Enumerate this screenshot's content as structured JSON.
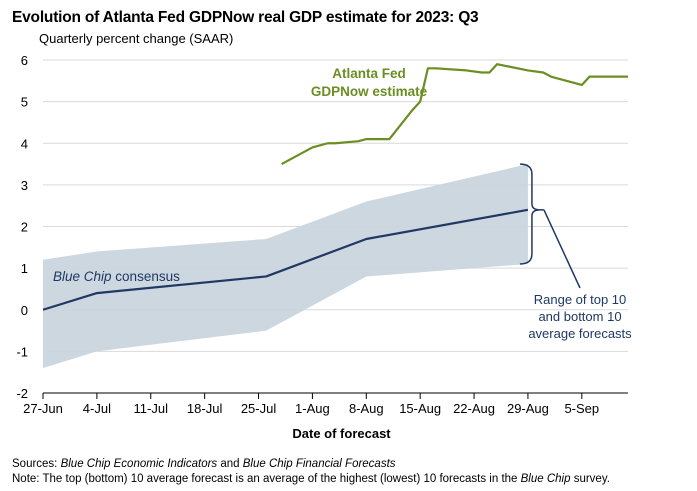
{
  "title": "Evolution of Atlanta Fed GDPNow real GDP estimate for 2023: Q3",
  "subtitle": "Quarterly percent change (SAAR)",
  "footer": {
    "sources_label": "Sources: ",
    "sources_title_1": "Blue Chip Economic Indicators",
    "sources_and": " and ",
    "sources_title_2": "Blue Chip Financial Forecasts",
    "note_label": "Note: ",
    "note_text_1": "The top (bottom) 10 average forecast is an average of the highest (lowest) 10 forecasts in the ",
    "note_title": "Blue Chip",
    "note_text_2": " survey."
  },
  "chart_data": {
    "type": "line",
    "xlabel": "Date of forecast",
    "ylabel": "",
    "x_ticks": [
      "27-Jun",
      "4-Jul",
      "11-Jul",
      "18-Jul",
      "25-Jul",
      "1-Aug",
      "8-Aug",
      "15-Aug",
      "22-Aug",
      "29-Aug",
      "5-Sep"
    ],
    "x_range": [
      "2023-06-27",
      "2023-09-11"
    ],
    "y_ticks": [
      -2,
      -1,
      0,
      1,
      2,
      3,
      4,
      5,
      6
    ],
    "ylim": [
      -2,
      6
    ],
    "grid": "horizontal",
    "colors": {
      "gdpnow": "#6b8e23",
      "bluechip": "#1f3864",
      "band": "#c9d5dd",
      "grid": "#d9d9d9"
    },
    "series": [
      {
        "name": "Atlanta Fed GDPNow estimate",
        "x": [
          "2023-07-28",
          "2023-07-31",
          "2023-08-01",
          "2023-08-02",
          "2023-08-03",
          "2023-08-04",
          "2023-08-07",
          "2023-08-08",
          "2023-08-09",
          "2023-08-10",
          "2023-08-11",
          "2023-08-14",
          "2023-08-15",
          "2023-08-16",
          "2023-08-17",
          "2023-08-21",
          "2023-08-23",
          "2023-08-24",
          "2023-08-25",
          "2023-08-29",
          "2023-08-31",
          "2023-09-01",
          "2023-09-05",
          "2023-09-06",
          "2023-09-07",
          "2023-09-08",
          "2023-09-11"
        ],
        "values": [
          3.5,
          3.8,
          3.9,
          3.95,
          4.0,
          4.0,
          4.05,
          4.1,
          4.1,
          4.1,
          4.1,
          4.8,
          5.0,
          5.8,
          5.8,
          5.75,
          5.7,
          5.7,
          5.9,
          5.75,
          5.7,
          5.6,
          5.4,
          5.6,
          5.6,
          5.6,
          5.6
        ]
      },
      {
        "name": "Blue Chip consensus",
        "x": [
          "2023-06-27",
          "2023-07-04",
          "2023-07-26",
          "2023-08-08",
          "2023-08-29"
        ],
        "values": [
          0.0,
          0.4,
          0.8,
          1.7,
          2.4
        ]
      }
    ],
    "range_band": {
      "name": "Range of top 10 and bottom 10 average forecasts",
      "x": [
        "2023-06-27",
        "2023-07-04",
        "2023-07-26",
        "2023-08-08",
        "2023-08-29"
      ],
      "top": [
        1.2,
        1.4,
        1.7,
        2.6,
        3.5
      ],
      "bottom": [
        -1.4,
        -1.0,
        -0.5,
        0.8,
        1.1
      ]
    },
    "annotations": {
      "gdpnow_line1": "Atlanta Fed",
      "gdpnow_line2": "GDPNow estimate",
      "bluechip_italic": "Blue Chip",
      "bluechip_rest": " consensus",
      "range_line1": "Range of top 10",
      "range_line2": "and bottom 10",
      "range_line3": "average forecasts"
    }
  }
}
